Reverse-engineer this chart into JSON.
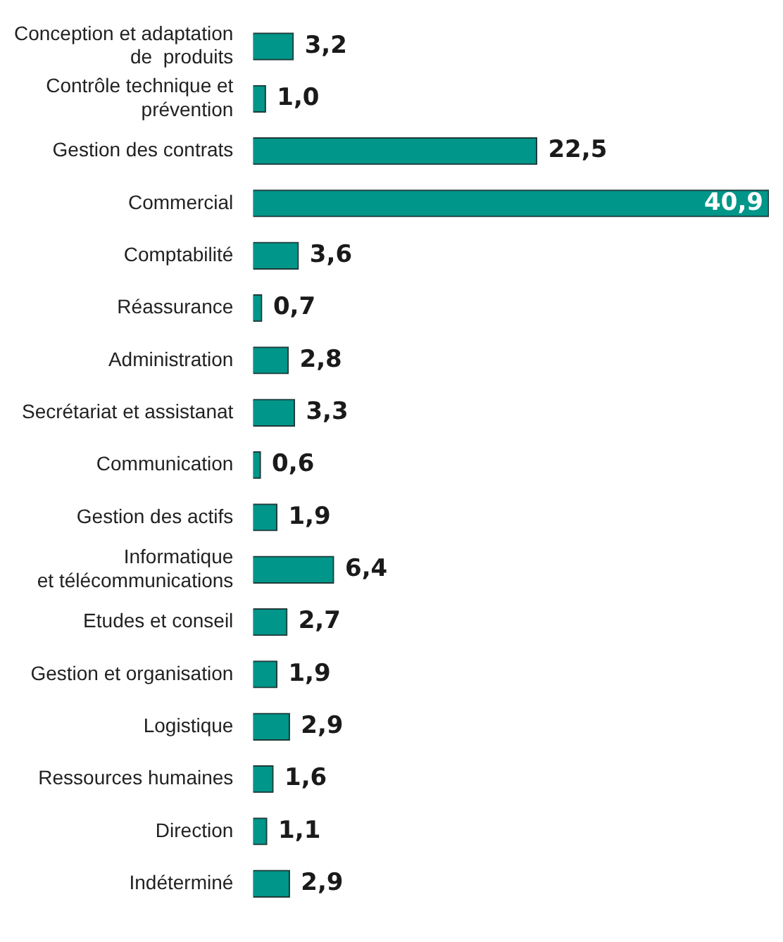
{
  "chart_data": {
    "type": "bar",
    "orientation": "horizontal",
    "categories": [
      "Conception et adaptation\nde  produits",
      "Contrôle technique et\nprévention",
      "Gestion des contrats",
      "Commercial",
      "Comptabilité",
      "Réassurance",
      "Administration",
      "Secrétariat et assistanat",
      "Communication",
      "Gestion des actifs",
      "Informatique\net télécommunications",
      "Etudes et conseil",
      "Gestion et organisation",
      "Logistique",
      "Ressources humaines",
      "Direction",
      "Indéterminé"
    ],
    "values": [
      3.2,
      1.0,
      22.5,
      40.9,
      3.6,
      0.7,
      2.8,
      3.3,
      0.6,
      1.9,
      6.4,
      2.7,
      1.9,
      2.9,
      1.6,
      1.1,
      2.9
    ],
    "value_labels": [
      "3,2",
      "1,0",
      "22,5",
      "40,9",
      "3,6",
      "0,7",
      "2,8",
      "3,3",
      "0,6",
      "1,9",
      "6,4",
      "2,7",
      "1,9",
      "2,9",
      "1,6",
      "1,1",
      "2,9"
    ],
    "color": "#00968a",
    "tick_labels": "y",
    "legend": false
  }
}
